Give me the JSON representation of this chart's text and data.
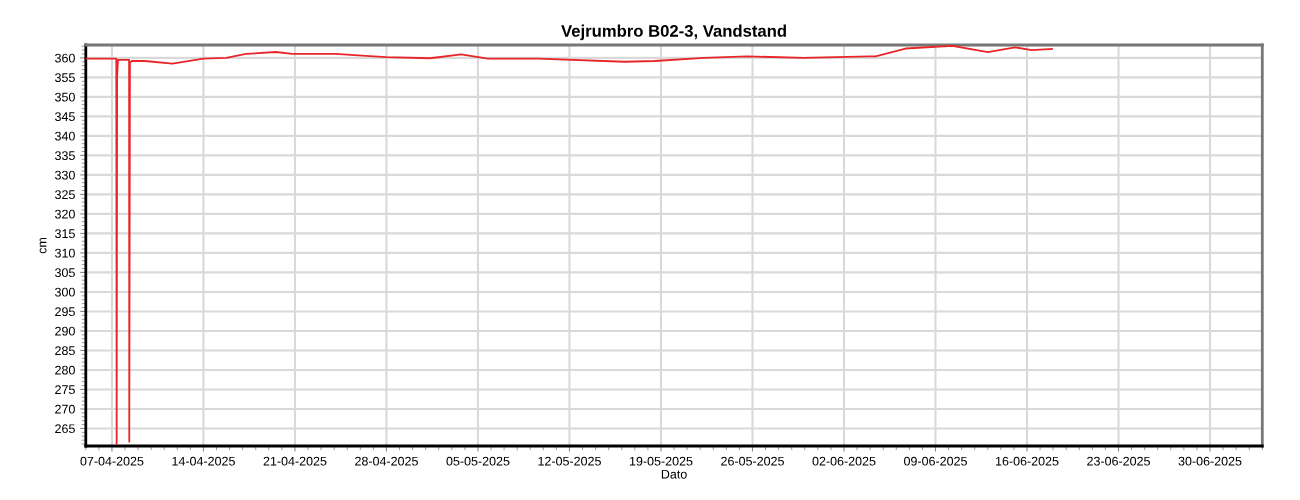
{
  "chart_data": {
    "type": "line",
    "title": "Vejrumbro B02-3, Vandstand",
    "xlabel": "Dato",
    "ylabel": "cm",
    "x": [
      "2025-04-05T00:00",
      "2025-04-07T08:00",
      "2025-04-07T08:40",
      "2025-04-07T09:30",
      "2025-04-07T11:00",
      "2025-04-07T16:00",
      "2025-04-08T07:30",
      "2025-04-08T07:50",
      "2025-04-08T09:00",
      "2025-04-08T12:00",
      "2025-04-09T12:00",
      "2025-04-11T15:00",
      "2025-04-14T00:00",
      "2025-04-15T18:00",
      "2025-04-17T06:00",
      "2025-04-19T13:00",
      "2025-04-20T19:00",
      "2025-04-24T03:00",
      "2025-04-26T10:00",
      "2025-04-28T00:00",
      "2025-05-01T08:00",
      "2025-05-03T17:00",
      "2025-05-05T18:00",
      "2025-05-09T14:00",
      "2025-05-16T05:00",
      "2025-05-18T12:00",
      "2025-05-22T07:00",
      "2025-05-25T14:00",
      "2025-05-29T22:00",
      "2025-06-03T22:00",
      "2025-06-04T10:00",
      "2025-06-06T17:00",
      "2025-06-10T07:00",
      "2025-06-13T00:00",
      "2025-06-15T02:00",
      "2025-06-16T09:00",
      "2025-06-17T22:00"
    ],
    "series": [
      {
        "color": "#e8262a",
        "values": [
          359.8,
          359.8,
          261,
          355,
          359.5,
          359.5,
          359.5,
          261.6,
          358.7,
          359.2,
          359.2,
          358.5,
          359.8,
          360,
          361,
          361.5,
          361,
          361,
          360.5,
          360.2,
          359.9,
          360.9,
          359.8,
          359.8,
          359,
          359.2,
          360,
          360.4,
          360,
          360.4,
          360.4,
          362.4,
          363.1,
          361.5,
          362.7,
          362,
          362.3
        ]
      }
    ],
    "xlim": [
      "2025-04-05T00:00",
      "2025-07-04T00:00"
    ],
    "ylim": [
      260.5,
      363.3
    ],
    "xticks": [
      {
        "value": "2025-04-07",
        "label": "07-04-2025"
      },
      {
        "value": "2025-04-14",
        "label": "14-04-2025"
      },
      {
        "value": "2025-04-21",
        "label": "21-04-2025"
      },
      {
        "value": "2025-04-28",
        "label": "28-04-2025"
      },
      {
        "value": "2025-05-05",
        "label": "05-05-2025"
      },
      {
        "value": "2025-05-12",
        "label": "12-05-2025"
      },
      {
        "value": "2025-05-19",
        "label": "19-05-2025"
      },
      {
        "value": "2025-05-26",
        "label": "26-05-2025"
      },
      {
        "value": "2025-06-02",
        "label": "02-06-2025"
      },
      {
        "value": "2025-06-09",
        "label": "09-06-2025"
      },
      {
        "value": "2025-06-16",
        "label": "16-06-2025"
      },
      {
        "value": "2025-06-23",
        "label": "23-06-2025"
      },
      {
        "value": "2025-06-30",
        "label": "30-06-2025"
      }
    ],
    "yticks": [
      265,
      270,
      275,
      280,
      285,
      290,
      295,
      300,
      305,
      310,
      315,
      320,
      325,
      330,
      335,
      340,
      345,
      350,
      355,
      360
    ],
    "grid": true,
    "marker": "none",
    "line_style": "solid"
  }
}
